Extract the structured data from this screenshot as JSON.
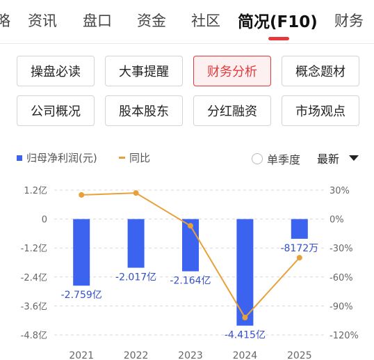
{
  "tabs": [
    {
      "label": "略"
    },
    {
      "label": "资讯"
    },
    {
      "label": "盘口"
    },
    {
      "label": "资金"
    },
    {
      "label": "社区"
    },
    {
      "label": "简况(F10)"
    },
    {
      "label": "财务"
    }
  ],
  "buttons": [
    {
      "label": "操盘必读"
    },
    {
      "label": "大事提醒"
    },
    {
      "label": "财务分析"
    },
    {
      "label": "概念题材"
    },
    {
      "label": "公司概况"
    },
    {
      "label": "股本股东"
    },
    {
      "label": "分红融资"
    },
    {
      "label": "市场观点"
    }
  ],
  "legend": {
    "series1": "归母净利润(元)",
    "series2": "同比",
    "quarter_label": "单季度",
    "sort_label": "最新"
  },
  "colors": {
    "accent": "#e4393c",
    "bar": "#3b63f0",
    "line": "#e8a13a"
  },
  "chart_data": {
    "type": "bar",
    "categories": [
      "2021",
      "2022",
      "2023",
      "2024",
      "2025"
    ],
    "series": [
      {
        "name": "归母净利润(元)",
        "values": [
          -2.759,
          -2.017,
          -2.164,
          -4.415,
          -0.8172
        ],
        "unit": "亿",
        "labels": [
          "-2.759亿",
          "-2.017亿",
          "-2.164亿",
          "-4.415亿",
          "-8172万"
        ]
      },
      {
        "name": "同比",
        "type": "line",
        "axis": "right",
        "values": [
          25,
          27,
          -7,
          -102,
          -40
        ],
        "unit": "%"
      }
    ],
    "y_left": {
      "ticks": [
        "1.2亿",
        "0",
        "-1.2亿",
        "-2.4亿",
        "-3.6亿",
        "-4.8亿"
      ],
      "ylim": [
        -4.8,
        1.2
      ]
    },
    "y_right": {
      "ticks": [
        "30%",
        "0%",
        "-30%",
        "-60%",
        "-90%",
        "-120%"
      ],
      "ylim": [
        -120,
        30
      ]
    },
    "grid": true
  }
}
